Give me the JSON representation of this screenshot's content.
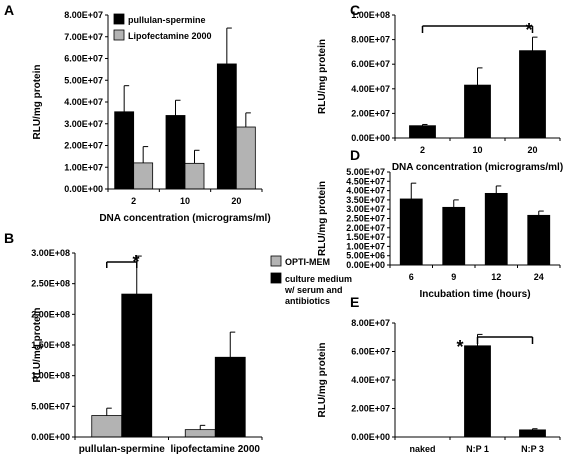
{
  "figure": {
    "panels": [
      "A",
      "B",
      "C",
      "D",
      "E"
    ]
  },
  "chart_data": [
    {
      "panel": "A",
      "type": "bar",
      "xlabel": "DNA concentration (micrograms/ml)",
      "ylabel": "RLU/mg protein",
      "categories": [
        "2",
        "10",
        "20"
      ],
      "yticks": [
        "0.00E+00",
        "1.00E+07",
        "2.00E+07",
        "3.00E+07",
        "4.00E+07",
        "5.00E+07",
        "6.00E+07",
        "7.00E+07",
        "8.00E+07"
      ],
      "ylim": [
        0,
        80000000
      ],
      "series": [
        {
          "name": "pullulan-spermine",
          "color": "#000000",
          "values": [
            35500000,
            33800000,
            57500000
          ],
          "errors": [
            12000000,
            7000000,
            16500000
          ]
        },
        {
          "name": "Lipofectamine 2000",
          "color": "#b3b3b3",
          "values": [
            12000000,
            11800000,
            28500000
          ],
          "errors": [
            7500000,
            6000000,
            6500000
          ]
        }
      ],
      "legend_position": "top-left",
      "grid": false
    },
    {
      "panel": "B",
      "type": "bar",
      "xlabel": "",
      "ylabel": "RLU/mg protein",
      "categories": [
        "pullulan-spermine",
        "lipofectamine 2000"
      ],
      "yticks": [
        "0.00E+00",
        "5.00E+07",
        "1.00E+08",
        "1.50E+08",
        "2.00E+08",
        "2.50E+08",
        "3.00E+08"
      ],
      "ylim": [
        0,
        300000000
      ],
      "series": [
        {
          "name": "OPTI-MEM",
          "color": "#b3b3b3",
          "values": [
            35000000,
            12000000
          ],
          "errors": [
            12000000,
            7000000
          ]
        },
        {
          "name": [
            "culture medium",
            "w/ serum and",
            "antibiotics"
          ],
          "color": "#000000",
          "values": [
            233000000,
            130000000
          ],
          "errors": [
            62000000,
            41000000
          ]
        }
      ],
      "legend_position": "top-right",
      "annotation": "*",
      "grid": false
    },
    {
      "panel": "C",
      "type": "bar",
      "xlabel": "DNA concentration (micrograms/ml)",
      "ylabel": "RLU/mg protein",
      "categories": [
        "2",
        "10",
        "20"
      ],
      "yticks": [
        "0.00E+00",
        "2.00E+07",
        "4.00E+07",
        "6.00E+07",
        "8.00E+07",
        "1.00E+08"
      ],
      "ylim": [
        0,
        100000000
      ],
      "series": [
        {
          "name": "",
          "color": "#000000",
          "values": [
            10000000,
            43000000,
            71000000
          ],
          "errors": [
            1000000,
            14000000,
            11000000
          ]
        }
      ],
      "annotation": "*",
      "grid": false
    },
    {
      "panel": "D",
      "type": "bar",
      "xlabel": "Incubation time (hours)",
      "ylabel": "RLU/mg protein",
      "categories": [
        "6",
        "9",
        "12",
        "24"
      ],
      "yticks": [
        "0.00E+00",
        "5.00E+06",
        "1.00E+07",
        "1.50E+07",
        "2.00E+07",
        "2.50E+07",
        "3.00E+07",
        "3.50E+07",
        "4.00E+07",
        "4.50E+07",
        "5.00E+07"
      ],
      "ylim": [
        0,
        50000000
      ],
      "series": [
        {
          "name": "",
          "color": "#000000",
          "values": [
            35500000,
            31000000,
            38500000,
            26700000
          ],
          "errors": [
            8500000,
            4000000,
            4000000,
            2300000
          ]
        }
      ],
      "grid": false
    },
    {
      "panel": "E",
      "type": "bar",
      "xlabel": "",
      "ylabel": "RLU/mg protein",
      "categories": [
        "naked",
        "N:P 1",
        "N:P 3"
      ],
      "yticks": [
        "0.00E+00",
        "2.00E+07",
        "4.00E+07",
        "6.00E+07",
        "8.00E+07"
      ],
      "ylim": [
        0,
        80000000
      ],
      "series": [
        {
          "name": "",
          "color": "#000000",
          "values": [
            0,
            64000000,
            5000000
          ],
          "errors": [
            0,
            8000000,
            800000
          ]
        }
      ],
      "annotation": "*",
      "grid": false
    }
  ]
}
